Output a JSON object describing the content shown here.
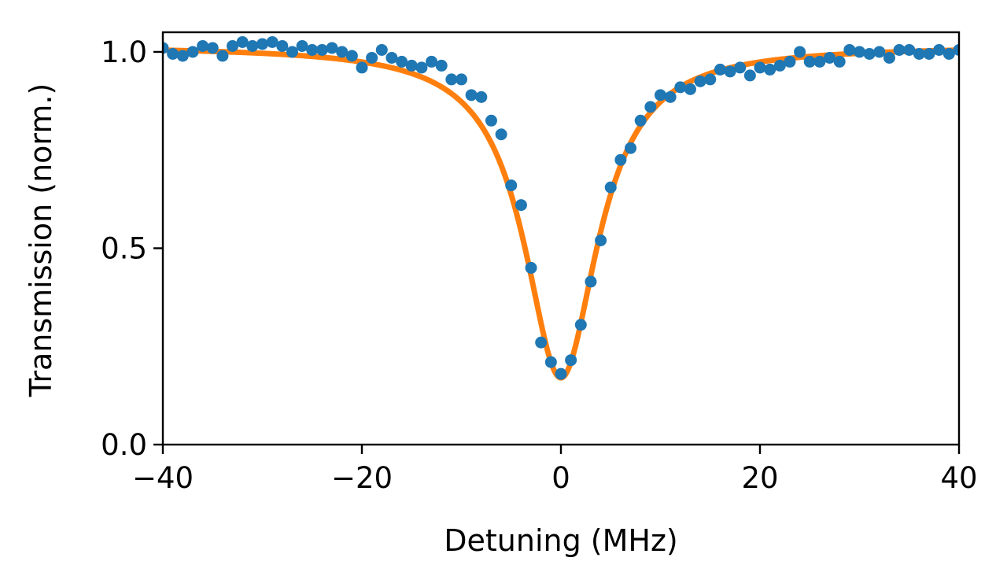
{
  "chart_data": {
    "type": "scatter",
    "title": "",
    "xlabel": "Detuning (MHz)",
    "ylabel": "Transmission (norm.)",
    "xlim": [
      -40,
      40
    ],
    "ylim": [
      0,
      1.05
    ],
    "grid": false,
    "x_ticks": [
      {
        "value": -40,
        "label": "−40"
      },
      {
        "value": -20,
        "label": "−20"
      },
      {
        "value": 0,
        "label": "0"
      },
      {
        "value": 20,
        "label": "20"
      },
      {
        "value": 40,
        "label": "40"
      }
    ],
    "y_ticks": [
      {
        "value": 0.0,
        "label": "0.0"
      },
      {
        "value": 0.5,
        "label": "0.5"
      },
      {
        "value": 1.0,
        "label": "1.0"
      }
    ],
    "series": [
      {
        "kind": "scatter",
        "color": "#1f77b4",
        "points": [
          [
            -40,
            1.01
          ],
          [
            -39,
            0.995
          ],
          [
            -38,
            0.99
          ],
          [
            -37,
            1.0
          ],
          [
            -36,
            1.015
          ],
          [
            -35,
            1.01
          ],
          [
            -34,
            0.99
          ],
          [
            -33,
            1.015
          ],
          [
            -32,
            1.025
          ],
          [
            -31,
            1.015
          ],
          [
            -30,
            1.02
          ],
          [
            -29,
            1.025
          ],
          [
            -28,
            1.015
          ],
          [
            -27,
            1.0
          ],
          [
            -26,
            1.015
          ],
          [
            -25,
            1.005
          ],
          [
            -24,
            1.005
          ],
          [
            -23,
            1.01
          ],
          [
            -22,
            1.0
          ],
          [
            -21,
            0.99
          ],
          [
            -20,
            0.96
          ],
          [
            -19,
            0.985
          ],
          [
            -18,
            1.005
          ],
          [
            -17,
            0.985
          ],
          [
            -16,
            0.975
          ],
          [
            -15,
            0.965
          ],
          [
            -14,
            0.96
          ],
          [
            -13,
            0.975
          ],
          [
            -12,
            0.965
          ],
          [
            -11,
            0.93
          ],
          [
            -10,
            0.93
          ],
          [
            -9,
            0.89
          ],
          [
            -8,
            0.885
          ],
          [
            -7,
            0.825
          ],
          [
            -6,
            0.79
          ],
          [
            -5,
            0.66
          ],
          [
            -4,
            0.61
          ],
          [
            -3,
            0.45
          ],
          [
            -2,
            0.26
          ],
          [
            -1,
            0.21
          ],
          [
            0,
            0.18
          ],
          [
            1,
            0.215
          ],
          [
            2,
            0.305
          ],
          [
            3,
            0.415
          ],
          [
            4,
            0.52
          ],
          [
            5,
            0.655
          ],
          [
            6,
            0.725
          ],
          [
            7,
            0.755
          ],
          [
            8,
            0.825
          ],
          [
            9,
            0.86
          ],
          [
            10,
            0.89
          ],
          [
            11,
            0.885
          ],
          [
            12,
            0.91
          ],
          [
            13,
            0.905
          ],
          [
            14,
            0.925
          ],
          [
            15,
            0.93
          ],
          [
            16,
            0.955
          ],
          [
            17,
            0.95
          ],
          [
            18,
            0.96
          ],
          [
            19,
            0.94
          ],
          [
            20,
            0.96
          ],
          [
            21,
            0.955
          ],
          [
            22,
            0.965
          ],
          [
            23,
            0.975
          ],
          [
            24,
            1.0
          ],
          [
            25,
            0.975
          ],
          [
            26,
            0.975
          ],
          [
            27,
            0.985
          ],
          [
            28,
            0.975
          ],
          [
            29,
            1.005
          ],
          [
            30,
            1.0
          ],
          [
            31,
            0.995
          ],
          [
            32,
            1.0
          ],
          [
            33,
            0.985
          ],
          [
            34,
            1.005
          ],
          [
            35,
            1.005
          ],
          [
            36,
            0.995
          ],
          [
            37,
            0.995
          ],
          [
            38,
            1.005
          ],
          [
            39,
            0.995
          ],
          [
            40,
            1.005
          ]
        ]
      },
      {
        "kind": "line",
        "color": "#ff7f0e",
        "model": "lorentzian",
        "baseline": 1.015,
        "depth": 0.845,
        "center": 0,
        "hwhm": 4.5
      }
    ]
  }
}
